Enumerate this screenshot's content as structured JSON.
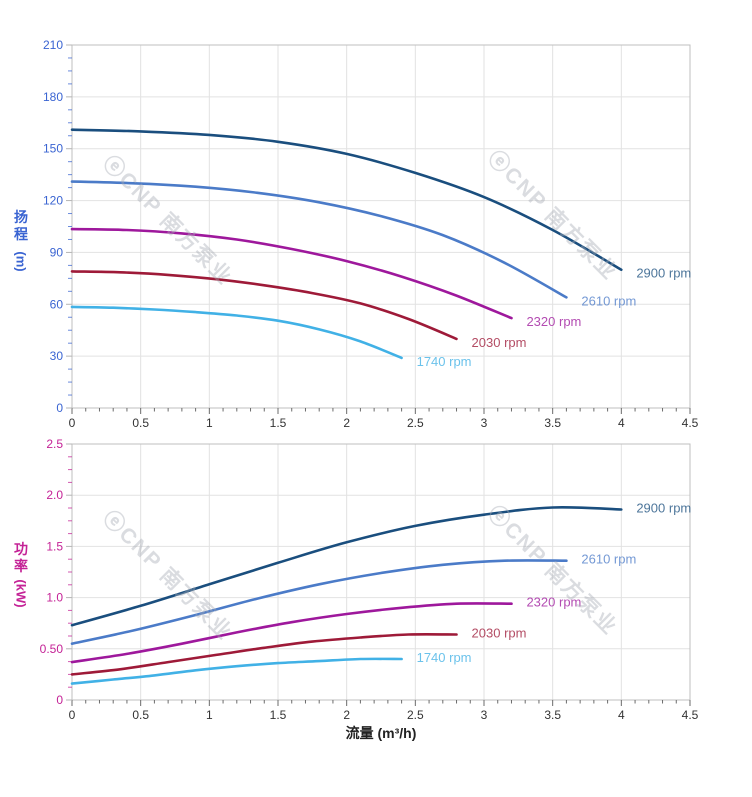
{
  "page": {
    "background": "#ffffff"
  },
  "watermark": {
    "text": "ⓔCNP 南方泵业"
  },
  "chart_data": [
    {
      "type": "line",
      "title": "",
      "xlabel": "",
      "ylabel": "扬程 (m)",
      "ylabel_chars": [
        "扬",
        "程"
      ],
      "ylabel_unit": "(m)",
      "axis_color": "#3a64d2",
      "xlim": [
        0,
        4.5
      ],
      "ylim": [
        0,
        210
      ],
      "xtick_values": [
        0,
        0.5,
        1,
        1.5,
        2,
        2.5,
        3,
        3.5,
        4,
        4.5
      ],
      "xtick_labels": [
        "0",
        "0.5",
        "1",
        "1.5",
        "2",
        "2.5",
        "3",
        "3.5",
        "4",
        "4.5"
      ],
      "ytick_values": [
        0,
        30,
        60,
        90,
        120,
        150,
        180,
        210
      ],
      "ytick_labels": [
        "0",
        "30",
        "60",
        "90",
        "120",
        "150",
        "180",
        "210"
      ],
      "x_minor_step": 0.1,
      "y_minor_step": 7.5,
      "grid": true,
      "legend_position": "line-end-labels",
      "series": [
        {
          "name": "2900 rpm",
          "color": "#1a4e7e",
          "x": [
            0,
            0.5,
            1.0,
            1.5,
            2.0,
            2.5,
            3.0,
            3.5,
            4.0
          ],
          "y": [
            161,
            160,
            158,
            154,
            147,
            136,
            122,
            103,
            80
          ]
        },
        {
          "name": "2610 rpm",
          "color": "#4b7bc8",
          "x": [
            0,
            0.45,
            0.9,
            1.35,
            1.8,
            2.25,
            2.7,
            3.15,
            3.6
          ],
          "y": [
            131,
            130,
            128,
            124.5,
            119,
            111,
            100,
            84,
            64
          ]
        },
        {
          "name": "2320 rpm",
          "color": "#9e189c",
          "x": [
            0,
            0.4,
            0.8,
            1.2,
            1.6,
            2.0,
            2.4,
            2.8,
            3.2
          ],
          "y": [
            103.5,
            103,
            101,
            97.5,
            92,
            85,
            76,
            65,
            52
          ]
        },
        {
          "name": "2030 rpm",
          "color": "#9e1a38",
          "x": [
            0,
            0.35,
            0.7,
            1.05,
            1.4,
            1.75,
            2.1,
            2.45,
            2.8
          ],
          "y": [
            79,
            78.5,
            77,
            74.5,
            71,
            66.5,
            60.5,
            51.5,
            40
          ]
        },
        {
          "name": "1740 rpm",
          "color": "#41b1e6",
          "x": [
            0,
            0.3,
            0.6,
            0.9,
            1.2,
            1.5,
            1.8,
            2.1,
            2.4
          ],
          "y": [
            58.5,
            58,
            57,
            55.5,
            53.5,
            50.5,
            45.5,
            38.5,
            29
          ]
        }
      ]
    },
    {
      "type": "line",
      "title": "",
      "xlabel": "流量 (m³/h)",
      "ylabel": "功率 (kW)",
      "ylabel_chars": [
        "功",
        "率"
      ],
      "ylabel_unit": "(kW)",
      "axis_color": "#c42296",
      "xlim": [
        0,
        4.5
      ],
      "ylim": [
        0,
        2.5
      ],
      "xtick_values": [
        0,
        0.5,
        1,
        1.5,
        2,
        2.5,
        3,
        3.5,
        4,
        4.5
      ],
      "xtick_labels": [
        "0",
        "0.5",
        "1",
        "1.5",
        "2",
        "2.5",
        "3",
        "3.5",
        "4",
        "4.5"
      ],
      "ytick_values": [
        0,
        0.5,
        1.0,
        1.5,
        2.0,
        2.5
      ],
      "ytick_labels": [
        "0",
        "0.50",
        "1.0",
        "1.5",
        "2.0",
        "2.5"
      ],
      "x_minor_step": 0.1,
      "y_minor_step": 0.125,
      "grid": true,
      "legend_position": "line-end-labels",
      "series": [
        {
          "name": "2900 rpm",
          "color": "#1a4e7e",
          "x": [
            0,
            0.5,
            1.0,
            1.5,
            2.0,
            2.5,
            3.0,
            3.5,
            4.0
          ],
          "y": [
            0.73,
            0.92,
            1.13,
            1.34,
            1.54,
            1.7,
            1.81,
            1.88,
            1.86
          ]
        },
        {
          "name": "2610 rpm",
          "color": "#4b7bc8",
          "x": [
            0,
            0.45,
            0.9,
            1.35,
            1.8,
            2.25,
            2.7,
            3.15,
            3.6
          ],
          "y": [
            0.55,
            0.68,
            0.83,
            0.99,
            1.13,
            1.24,
            1.32,
            1.36,
            1.36
          ]
        },
        {
          "name": "2320 rpm",
          "color": "#9e189c",
          "x": [
            0,
            0.4,
            0.8,
            1.2,
            1.6,
            2.0,
            2.4,
            2.8,
            3.2
          ],
          "y": [
            0.37,
            0.45,
            0.55,
            0.66,
            0.76,
            0.84,
            0.9,
            0.94,
            0.94
          ]
        },
        {
          "name": "2030 rpm",
          "color": "#9e1a38",
          "x": [
            0,
            0.35,
            0.7,
            1.05,
            1.4,
            1.75,
            2.1,
            2.45,
            2.8
          ],
          "y": [
            0.25,
            0.3,
            0.37,
            0.44,
            0.51,
            0.57,
            0.61,
            0.64,
            0.64
          ]
        },
        {
          "name": "1740 rpm",
          "color": "#41b1e6",
          "x": [
            0,
            0.3,
            0.6,
            0.9,
            1.2,
            1.5,
            1.8,
            2.1,
            2.4
          ],
          "y": [
            0.16,
            0.2,
            0.24,
            0.29,
            0.33,
            0.36,
            0.38,
            0.4,
            0.4
          ]
        }
      ]
    }
  ]
}
